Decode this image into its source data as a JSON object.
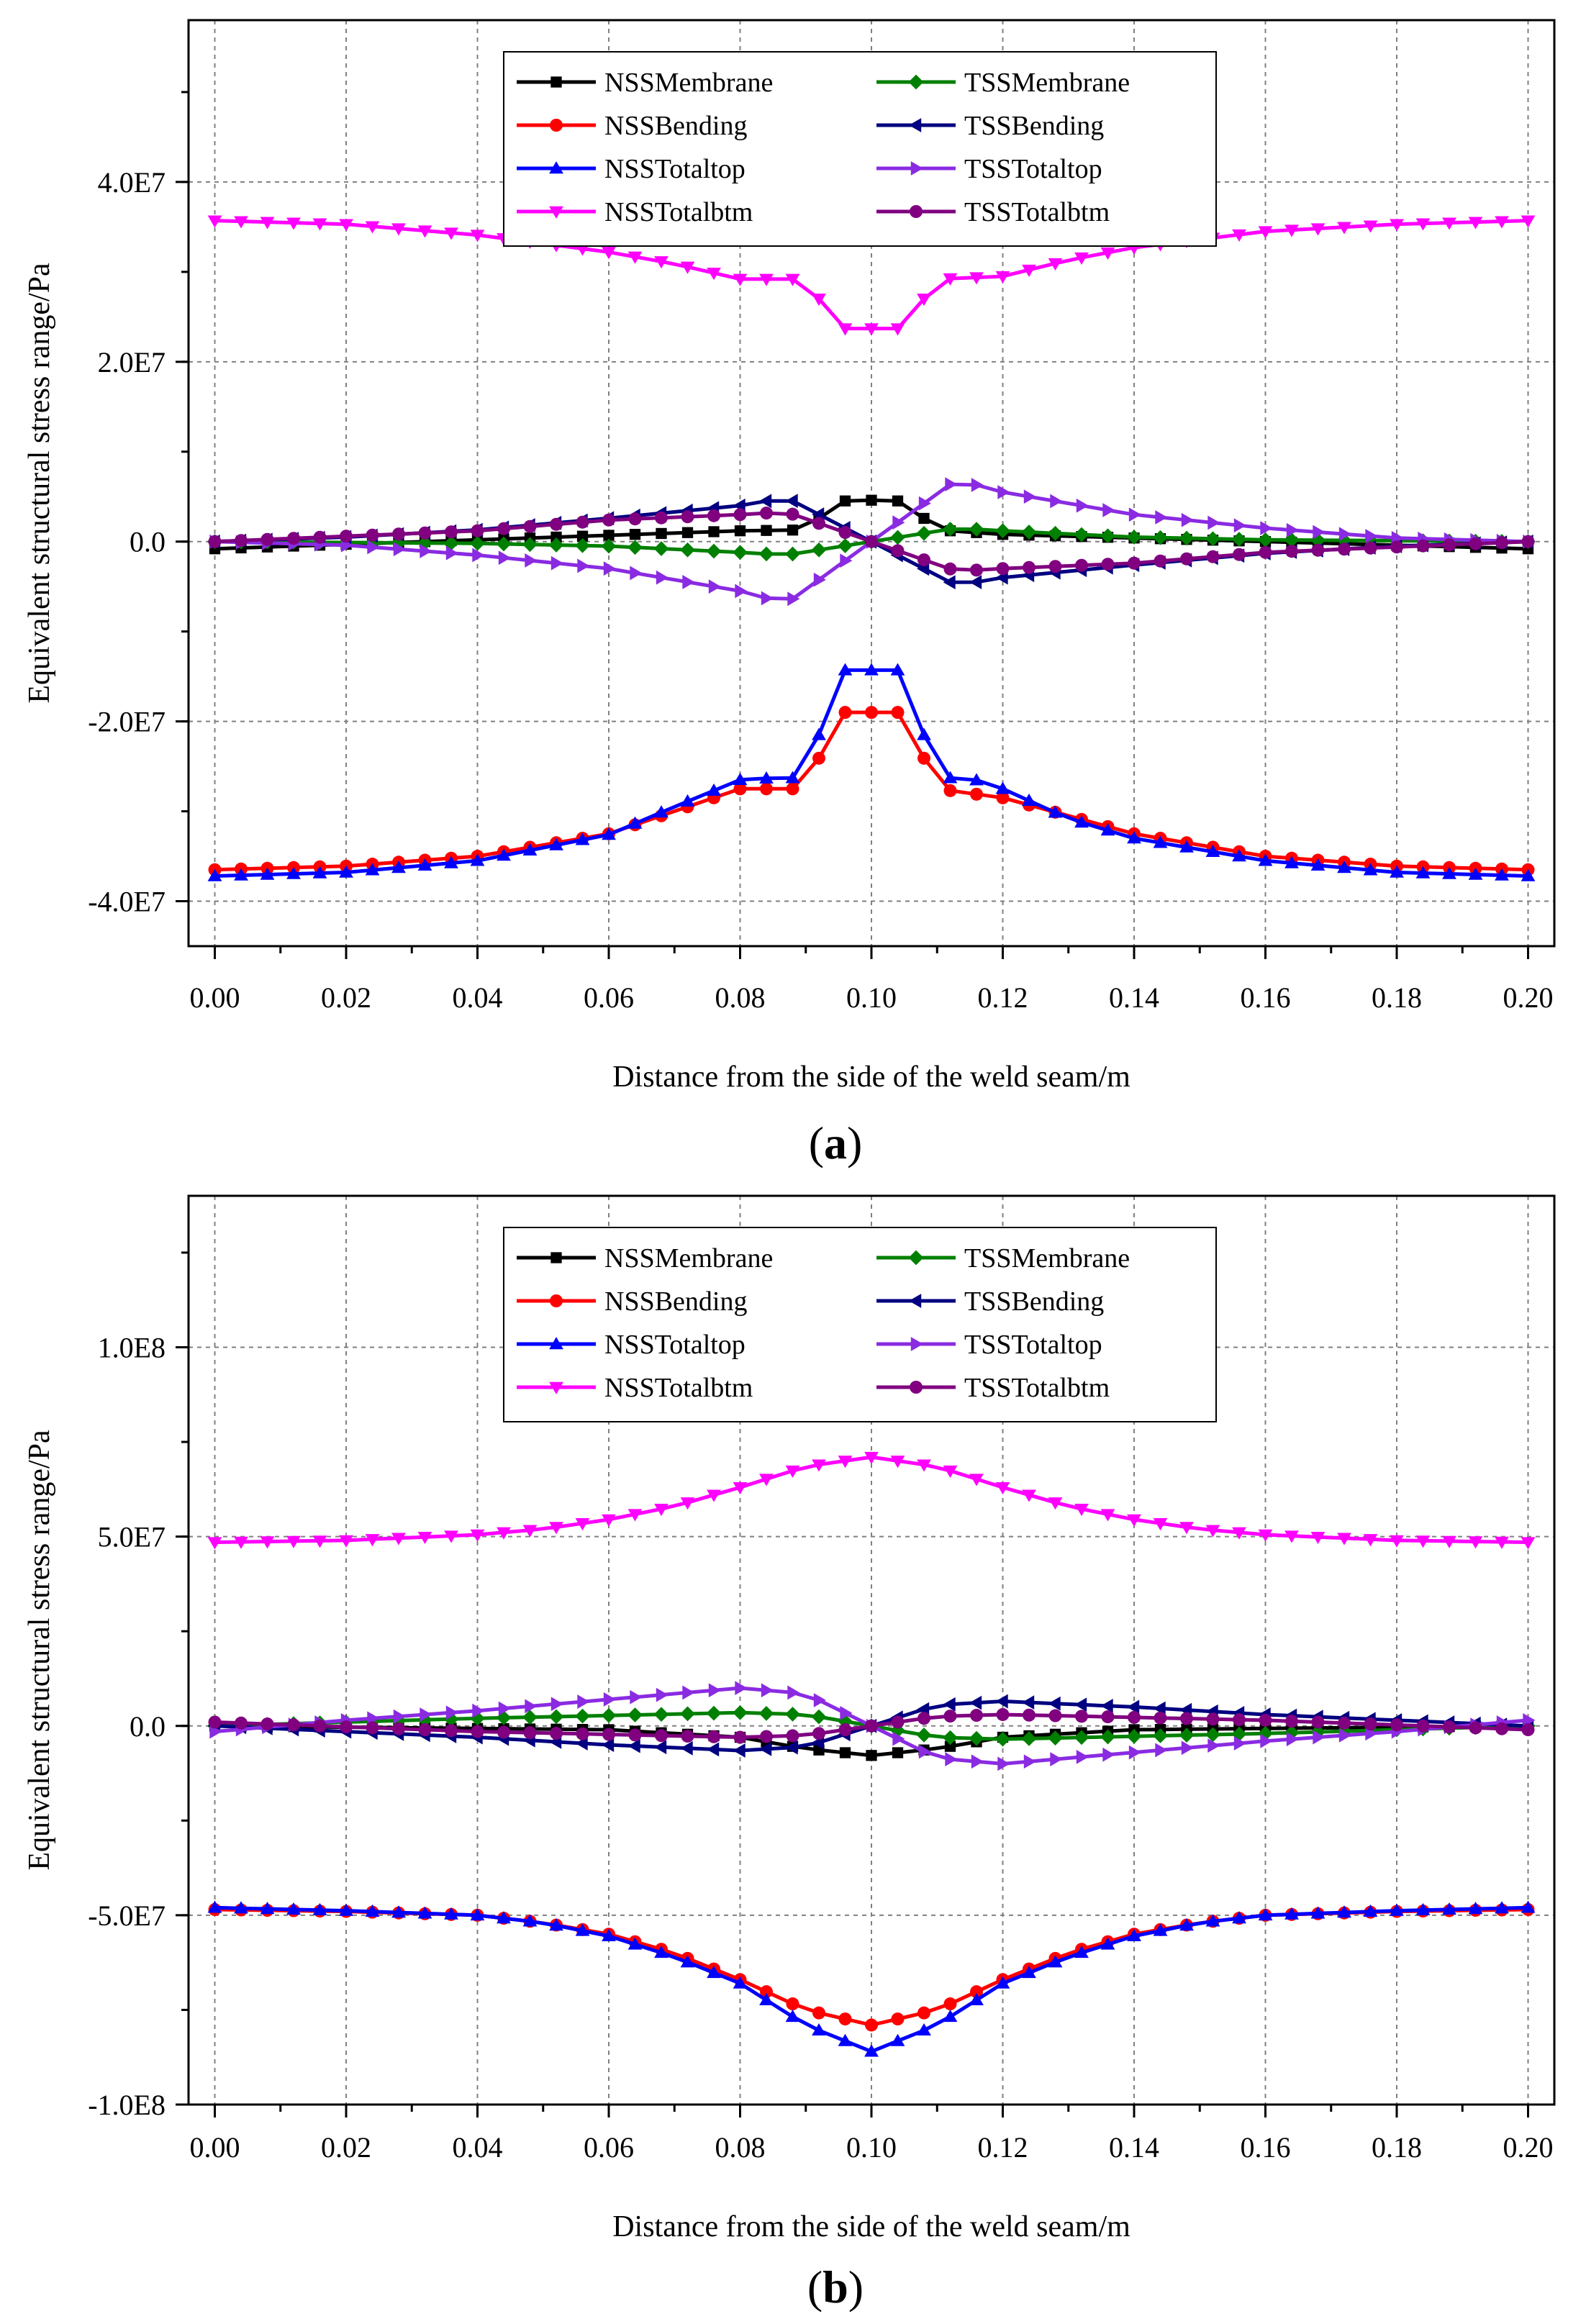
{
  "chart_data": [
    {
      "type": "line",
      "panel_label": "a",
      "xlabel": "Distance from the side of the weld seam/m",
      "ylabel": "Equivalent structural stress range/Pa",
      "xlim": [
        -0.004,
        0.204
      ],
      "ylim": [
        -45000000,
        58000000
      ],
      "x_ticks": [
        0.0,
        0.02,
        0.04,
        0.06,
        0.08,
        0.1,
        0.12,
        0.14,
        0.16,
        0.18,
        0.2
      ],
      "x_tick_labels": [
        "0.00",
        "0.02",
        "0.04",
        "0.06",
        "0.08",
        "0.10",
        "0.12",
        "0.14",
        "0.16",
        "0.18",
        "0.20"
      ],
      "y_ticks": [
        -40000000,
        -20000000,
        0,
        20000000,
        40000000
      ],
      "y_tick_labels": [
        "-4.0E7",
        "-2.0E7",
        "0.0",
        "2.0E7",
        "4.0E7"
      ],
      "grid": true,
      "legend_position": "top-center",
      "series": [
        {
          "name": "NSSMembrane",
          "color": "#000000",
          "marker": "square",
          "x": [
            0,
            0.08,
            0.09,
            0.095,
            0.1,
            0.105,
            0.11,
            0.12,
            0.2
          ],
          "y": [
            -800000,
            1200000,
            1300000,
            4500000,
            4600000,
            4500000,
            1300000,
            800000,
            -800000
          ]
        },
        {
          "name": "NSSBending",
          "color": "#ff0000",
          "marker": "circle",
          "x": [
            0,
            0.02,
            0.04,
            0.06,
            0.07,
            0.08,
            0.09,
            0.095,
            0.1,
            0.105,
            0.11,
            0.12,
            0.13,
            0.14,
            0.16,
            0.18,
            0.2
          ],
          "y": [
            -36500000,
            -36100000,
            -35000000,
            -32500000,
            -30000000,
            -27500000,
            -27500000,
            -19000000,
            -19000000,
            -19000000,
            -27500000,
            -28500000,
            -30500000,
            -32500000,
            -35000000,
            -36100000,
            -36500000
          ]
        },
        {
          "name": "NSSTotaltop",
          "color": "#0000ff",
          "marker": "triangle-up",
          "x": [
            0,
            0.02,
            0.04,
            0.06,
            0.07,
            0.08,
            0.085,
            0.09,
            0.095,
            0.1,
            0.105,
            0.11,
            0.115,
            0.12,
            0.13,
            0.14,
            0.16,
            0.18,
            0.2
          ],
          "y": [
            -37200000,
            -36800000,
            -35500000,
            -32600000,
            -29500000,
            -26500000,
            -26300000,
            -26300000,
            -14300000,
            -14300000,
            -14300000,
            -26300000,
            -26300000,
            -27500000,
            -30800000,
            -33000000,
            -35500000,
            -36800000,
            -37200000
          ]
        },
        {
          "name": "NSSTotalbtm",
          "color": "#ff00ff",
          "marker": "triangle-down",
          "x": [
            0,
            0.02,
            0.04,
            0.06,
            0.07,
            0.08,
            0.09,
            0.095,
            0.1,
            0.105,
            0.11,
            0.12,
            0.13,
            0.14,
            0.16,
            0.18,
            0.2
          ],
          "y": [
            35700000,
            35300000,
            34100000,
            32200000,
            30900000,
            29200000,
            29200000,
            23700000,
            23700000,
            23700000,
            29200000,
            29500000,
            31300000,
            32700000,
            34500000,
            35300000,
            35700000
          ]
        },
        {
          "name": "TSSMembrane",
          "color": "#008000",
          "marker": "diamond",
          "x": [
            0,
            0.04,
            0.06,
            0.08,
            0.087,
            0.1,
            0.113,
            0.12,
            0.14,
            0.16,
            0.2
          ],
          "y": [
            0,
            -200000,
            -500000,
            -1200000,
            -1500000,
            0,
            1500000,
            1200000,
            500000,
            200000,
            0
          ]
        },
        {
          "name": "TSSBending",
          "color": "#000080",
          "marker": "triangle-left",
          "x": [
            0,
            0.02,
            0.04,
            0.06,
            0.08,
            0.087,
            0.1,
            0.113,
            0.12,
            0.14,
            0.16,
            0.18,
            0.2
          ],
          "y": [
            0,
            500000,
            1300000,
            2600000,
            4000000,
            4900000,
            0,
            -4900000,
            -4000000,
            -2600000,
            -1300000,
            -500000,
            0
          ]
        },
        {
          "name": "TSSTotaltop",
          "color": "#8a2be2",
          "marker": "triangle-right",
          "x": [
            0,
            0.02,
            0.04,
            0.06,
            0.08,
            0.087,
            0.1,
            0.113,
            0.12,
            0.14,
            0.16,
            0.18,
            0.2
          ],
          "y": [
            0,
            -400000,
            -1500000,
            -3000000,
            -5500000,
            -6900000,
            0,
            6900000,
            5500000,
            3000000,
            1500000,
            400000,
            0
          ]
        },
        {
          "name": "TSSTotalbtm",
          "color": "#800080",
          "marker": "circle",
          "x": [
            0,
            0.02,
            0.04,
            0.06,
            0.08,
            0.087,
            0.1,
            0.113,
            0.12,
            0.14,
            0.16,
            0.18,
            0.2
          ],
          "y": [
            0,
            600000,
            1200000,
            2400000,
            3000000,
            3300000,
            0,
            -3300000,
            -3000000,
            -2400000,
            -1200000,
            -600000,
            0
          ]
        }
      ]
    },
    {
      "type": "line",
      "panel_label": "b",
      "xlabel": "Distance from the side of the weld seam/m",
      "ylabel": "Equivalent structural stress range/Pa",
      "xlim": [
        -0.004,
        0.204
      ],
      "ylim": [
        -100000000,
        140000000
      ],
      "x_ticks": [
        0.0,
        0.02,
        0.04,
        0.06,
        0.08,
        0.1,
        0.12,
        0.14,
        0.16,
        0.18,
        0.2
      ],
      "x_tick_labels": [
        "0.00",
        "0.02",
        "0.04",
        "0.06",
        "0.08",
        "0.10",
        "0.12",
        "0.14",
        "0.16",
        "0.18",
        "0.20"
      ],
      "y_ticks": [
        -100000000,
        -50000000,
        0,
        50000000,
        100000000
      ],
      "y_tick_labels": [
        "-1.0E8",
        "-5.0E7",
        "0.0",
        "5.0E7",
        "1.0E8"
      ],
      "grid": true,
      "legend_position": "top-center",
      "series": [
        {
          "name": "NSSMembrane",
          "color": "#000000",
          "marker": "square",
          "x": [
            0,
            0.06,
            0.08,
            0.09,
            0.1,
            0.11,
            0.12,
            0.14,
            0.2
          ],
          "y": [
            0,
            -1000000,
            -3000000,
            -6000000,
            -7800000,
            -6000000,
            -3000000,
            -1000000,
            0
          ]
        },
        {
          "name": "NSSBending",
          "color": "#ff0000",
          "marker": "circle",
          "x": [
            0,
            0.02,
            0.04,
            0.05,
            0.06,
            0.07,
            0.08,
            0.09,
            0.1,
            0.11,
            0.12,
            0.13,
            0.14,
            0.15,
            0.16,
            0.18,
            0.2
          ],
          "y": [
            -48500000,
            -49000000,
            -50000000,
            -52000000,
            -55000000,
            -60000000,
            -67000000,
            -75000000,
            -79000000,
            -75000000,
            -67000000,
            -60000000,
            -55000000,
            -52000000,
            -50000000,
            -49000000,
            -48500000
          ]
        },
        {
          "name": "NSSTotaltop",
          "color": "#0000ff",
          "marker": "triangle-up",
          "x": [
            0,
            0.02,
            0.04,
            0.05,
            0.06,
            0.07,
            0.08,
            0.09,
            0.1,
            0.11,
            0.12,
            0.13,
            0.14,
            0.15,
            0.16,
            0.18,
            0.2
          ],
          "y": [
            -48000000,
            -48800000,
            -50000000,
            -52000000,
            -55500000,
            -61000000,
            -68000000,
            -79000000,
            -86000000,
            -79000000,
            -68000000,
            -61000000,
            -55500000,
            -52000000,
            -50000000,
            -48800000,
            -48000000
          ]
        },
        {
          "name": "NSSTotalbtm",
          "color": "#ff00ff",
          "marker": "triangle-down",
          "x": [
            0,
            0.02,
            0.04,
            0.05,
            0.06,
            0.07,
            0.08,
            0.09,
            0.1,
            0.11,
            0.12,
            0.13,
            0.14,
            0.15,
            0.16,
            0.18,
            0.2
          ],
          "y": [
            48500000,
            49000000,
            50500000,
            52000000,
            54500000,
            58000000,
            63000000,
            68500000,
            71000000,
            68500000,
            63000000,
            58000000,
            54500000,
            52000000,
            50500000,
            49000000,
            48500000
          ]
        },
        {
          "name": "TSSMembrane",
          "color": "#008000",
          "marker": "diamond",
          "x": [
            0,
            0.04,
            0.08,
            0.09,
            0.1,
            0.11,
            0.12,
            0.16,
            0.2
          ],
          "y": [
            0,
            2000000,
            3500000,
            3000000,
            0,
            -3000000,
            -3500000,
            -2000000,
            0
          ]
        },
        {
          "name": "TSSBending",
          "color": "#000080",
          "marker": "triangle-left",
          "x": [
            0,
            0.04,
            0.06,
            0.08,
            0.09,
            0.1,
            0.11,
            0.12,
            0.14,
            0.16,
            0.2
          ],
          "y": [
            0,
            -3000000,
            -5000000,
            -6500000,
            -5500000,
            0,
            5500000,
            6500000,
            5000000,
            3000000,
            0
          ]
        },
        {
          "name": "TSSTotaltop",
          "color": "#8a2be2",
          "marker": "triangle-right",
          "x": [
            0,
            0.02,
            0.04,
            0.06,
            0.08,
            0.09,
            0.1,
            0.11,
            0.12,
            0.14,
            0.16,
            0.18,
            0.2
          ],
          "y": [
            -1500000,
            1500000,
            4000000,
            7000000,
            10000000,
            8500000,
            0,
            -8500000,
            -10000000,
            -7000000,
            -4000000,
            -1500000,
            1500000
          ]
        },
        {
          "name": "TSSTotalbtm",
          "color": "#800080",
          "marker": "circle",
          "x": [
            0,
            0.04,
            0.08,
            0.09,
            0.1,
            0.11,
            0.12,
            0.16,
            0.2
          ],
          "y": [
            1000000,
            -1500000,
            -3000000,
            -2500000,
            0,
            2500000,
            3000000,
            1500000,
            -1000000
          ]
        }
      ]
    }
  ]
}
